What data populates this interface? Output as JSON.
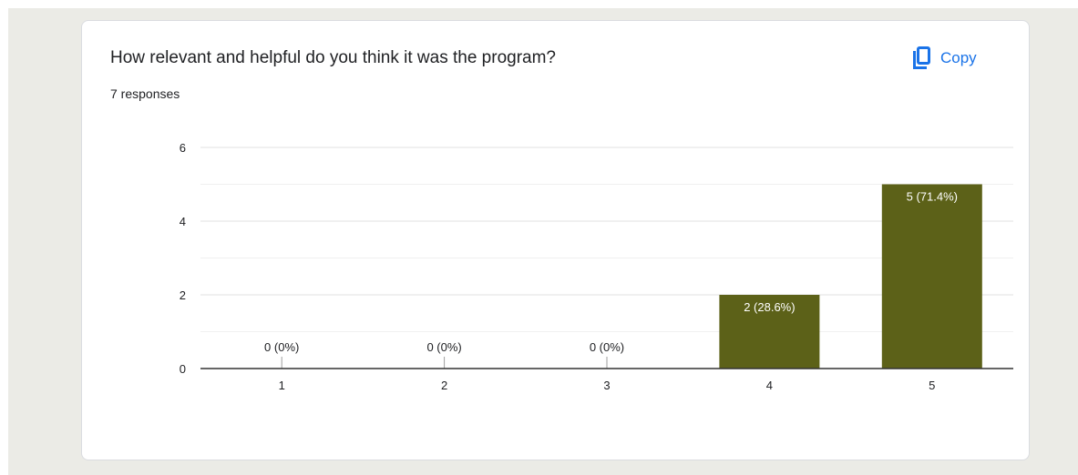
{
  "question": {
    "title": "How relevant and helpful do you think it was the program?",
    "response_count": "7 responses"
  },
  "toolbar": {
    "copy_label": "Copy",
    "copy_icon": "copy-icon"
  },
  "colors": {
    "bar": "#5c6118",
    "accent": "#1a73e8",
    "page_background": "#ebebe6"
  },
  "chart_data": {
    "type": "bar",
    "categories": [
      "1",
      "2",
      "3",
      "4",
      "5"
    ],
    "values": [
      0,
      0,
      0,
      2,
      5
    ],
    "data_labels": [
      "0 (0%)",
      "0 (0%)",
      "0 (0%)",
      "2 (28.6%)",
      "5 (71.4%)"
    ],
    "ylim": [
      0,
      6
    ],
    "y_ticks": [
      0,
      2,
      4,
      6
    ],
    "grid": true,
    "legend": "none"
  }
}
